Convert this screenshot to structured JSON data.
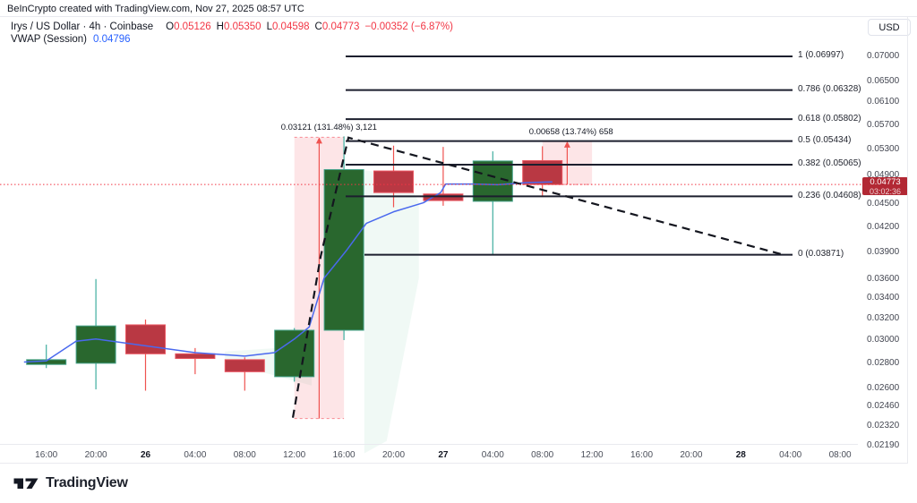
{
  "header": {
    "credit": "BeInCrypto created with TradingView.com, Nov 27, 2025 08:57 UTC"
  },
  "legend": {
    "symbol": "Irys / US Dollar · 4h · Coinbase",
    "ohlc": [
      {
        "k": "O",
        "v": "0.05126"
      },
      {
        "k": "H",
        "v": "0.05350"
      },
      {
        "k": "L",
        "v": "0.04598"
      },
      {
        "k": "C",
        "v": "0.04773"
      }
    ],
    "change": "−0.00352 (−6.87%)",
    "indicator": "VWAP (Session)",
    "indicator_value": "0.04796"
  },
  "axis": {
    "currency": "USD",
    "price_ticks": [
      {
        "label": "0.07000",
        "value": 0.07
      },
      {
        "label": "0.06500",
        "value": 0.065
      },
      {
        "label": "0.06100",
        "value": 0.061
      },
      {
        "label": "0.05700",
        "value": 0.057
      },
      {
        "label": "0.05300",
        "value": 0.053
      },
      {
        "label": "0.04900",
        "value": 0.049
      },
      {
        "label": "0.04500",
        "value": 0.045
      },
      {
        "label": "0.04200",
        "value": 0.042
      },
      {
        "label": "0.03900",
        "value": 0.039
      },
      {
        "label": "0.03600",
        "value": 0.036
      },
      {
        "label": "0.03400",
        "value": 0.034
      },
      {
        "label": "0.03200",
        "value": 0.032
      },
      {
        "label": "0.03000",
        "value": 0.03
      },
      {
        "label": "0.02800",
        "value": 0.028
      },
      {
        "label": "0.02600",
        "value": 0.026
      },
      {
        "label": "0.02460",
        "value": 0.0246
      },
      {
        "label": "0.02320",
        "value": 0.0232
      },
      {
        "label": "0.02190",
        "value": 0.0219
      }
    ],
    "time_ticks": [
      {
        "label": "16:00",
        "bold": false
      },
      {
        "label": "20:00",
        "bold": false
      },
      {
        "label": "26",
        "bold": true
      },
      {
        "label": "04:00",
        "bold": false
      },
      {
        "label": "08:00",
        "bold": false
      },
      {
        "label": "12:00",
        "bold": false
      },
      {
        "label": "16:00",
        "bold": false
      },
      {
        "label": "20:00",
        "bold": false
      },
      {
        "label": "27",
        "bold": true
      },
      {
        "label": "04:00",
        "bold": false
      },
      {
        "label": "08:00",
        "bold": false
      },
      {
        "label": "12:00",
        "bold": false
      },
      {
        "label": "16:00",
        "bold": false
      },
      {
        "label": "20:00",
        "bold": false
      },
      {
        "label": "28",
        "bold": true
      },
      {
        "label": "04:00",
        "bold": false
      },
      {
        "label": "08:00",
        "bold": false
      }
    ]
  },
  "price_label": {
    "price": "0.04773",
    "countdown": "03:02:36"
  },
  "watermark": {
    "logo_text": "TradingView"
  },
  "colors": {
    "up_body": "#29672e",
    "up_border": "#43a188",
    "up_wick": "#3fae9f",
    "down_body": "#b93843",
    "down_border": "#ea5560",
    "down_wick": "#ef5350",
    "vwap": "#4a69ee",
    "fib_line": "#1c1f2e",
    "trend_dash": "#14161f",
    "accent_red": "#f23645",
    "measure_fill": "rgba(242,54,69,0.13)",
    "measure_arrow": "#ef5350",
    "band_fill": "rgba(42,166,120,0.07)",
    "badge_bg": "#b22834",
    "link_blue": "#2962ff"
  },
  "chart_data": {
    "type": "candlestick",
    "symbol": "IRYS/USD",
    "interval": "4h",
    "exchange": "Coinbase",
    "scale": "log",
    "ylim": [
      0.0219,
      0.07
    ],
    "grid": false,
    "current_price": 0.04773,
    "last_ohlc": {
      "open": 0.05126,
      "high": 0.0535,
      "low": 0.04598,
      "close": 0.04773,
      "change": -0.00352,
      "change_pct": -6.87
    },
    "candles": [
      {
        "time": "Nov 25 16:00",
        "o": 0.0279,
        "h": 0.0296,
        "l": 0.0276,
        "c": 0.0283
      },
      {
        "time": "Nov 25 20:00",
        "o": 0.028,
        "h": 0.036,
        "l": 0.0259,
        "c": 0.0313
      },
      {
        "time": "Nov 26 00:00",
        "o": 0.0314,
        "h": 0.0319,
        "l": 0.0258,
        "c": 0.0288
      },
      {
        "time": "Nov 26 04:00",
        "o": 0.0288,
        "h": 0.0293,
        "l": 0.0271,
        "c": 0.0284
      },
      {
        "time": "Nov 26 08:00",
        "o": 0.0283,
        "h": 0.0285,
        "l": 0.0258,
        "c": 0.0273
      },
      {
        "time": "Nov 26 12:00",
        "o": 0.0269,
        "h": 0.0311,
        "l": 0.0265,
        "c": 0.0309
      },
      {
        "time": "Nov 26 16:00",
        "o": 0.0309,
        "h": 0.0551,
        "l": 0.03,
        "c": 0.0499
      },
      {
        "time": "Nov 26 20:00",
        "o": 0.0497,
        "h": 0.0536,
        "l": 0.0446,
        "c": 0.0466
      },
      {
        "time": "Nov 27 00:00",
        "o": 0.0464,
        "h": 0.0534,
        "l": 0.0448,
        "c": 0.0455
      },
      {
        "time": "Nov 27 04:00",
        "o": 0.0454,
        "h": 0.0527,
        "l": 0.0387,
        "c": 0.0512
      },
      {
        "time": "Nov 27 08:00",
        "o": 0.05126,
        "h": 0.0535,
        "l": 0.04598,
        "c": 0.04773
      }
    ],
    "vwap": {
      "name": "VWAP (Session)",
      "value": 0.04796,
      "points": [
        [
          -0.45,
          0.0281
        ],
        [
          0,
          0.0282
        ],
        [
          0.6,
          0.0299
        ],
        [
          1,
          0.0301
        ],
        [
          2,
          0.0295
        ],
        [
          3,
          0.0289
        ],
        [
          4,
          0.0286
        ],
        [
          4.6,
          0.0289
        ],
        [
          5,
          0.0301
        ],
        [
          5.3,
          0.0312
        ],
        [
          5.6,
          0.0361
        ],
        [
          6.05,
          0.0392
        ],
        [
          6.45,
          0.0425
        ],
        [
          7,
          0.044
        ],
        [
          7.6,
          0.0452
        ],
        [
          7.95,
          0.0466
        ],
        [
          8.05,
          0.0478
        ],
        [
          8.6,
          0.0478
        ],
        [
          9.1,
          0.0477
        ],
        [
          9.7,
          0.048
        ],
        [
          10.2,
          0.0481
        ]
      ]
    },
    "vwap_band_polygons": [
      [
        [
          6.41,
          0.0498
        ],
        [
          7.19,
          0.049
        ],
        [
          7.51,
          0.0453
        ],
        [
          7.51,
          0.0361
        ],
        [
          6.86,
          0.0222
        ],
        [
          6.41,
          0.0214
        ]
      ],
      [
        [
          3.6,
          0.029
        ],
        [
          5.35,
          0.0295
        ],
        [
          5.35,
          0.0262
        ],
        [
          3.6,
          0.0281
        ]
      ]
    ],
    "fib_retracement": {
      "levels": [
        {
          "ratio": 1,
          "price": 0.06997,
          "label": "1 (0.06997)"
        },
        {
          "ratio": 0.786,
          "price": 0.06328,
          "label": "0.786 (0.06328)"
        },
        {
          "ratio": 0.618,
          "price": 0.05802,
          "label": "0.618 (0.05802)"
        },
        {
          "ratio": 0.5,
          "price": 0.05434,
          "label": "0.5 (0.05434)"
        },
        {
          "ratio": 0.382,
          "price": 0.05065,
          "label": "0.382 (0.05065)"
        },
        {
          "ratio": 0.236,
          "price": 0.04608,
          "label": "0.236 (0.04608)"
        },
        {
          "ratio": 0,
          "price": 0.03871,
          "label": "0 (0.03871)"
        }
      ]
    },
    "measurements": [
      {
        "label": "0.03121 (131.48%) 3,121",
        "from_index": 5,
        "to_index": 6,
        "from_price": 0.02374,
        "to_price": 0.05495
      },
      {
        "label": "0.00658 (13.74%) 658",
        "from_index": 10,
        "to_index": 11,
        "from_price": 0.04773,
        "to_price": 0.05431
      }
    ],
    "trendline_dashed": {
      "points": [
        [
          4.97,
          0.0238
        ],
        [
          5.53,
          0.0385
        ],
        [
          6.09,
          0.0549
        ],
        [
          14.86,
          0.0387
        ]
      ]
    }
  }
}
